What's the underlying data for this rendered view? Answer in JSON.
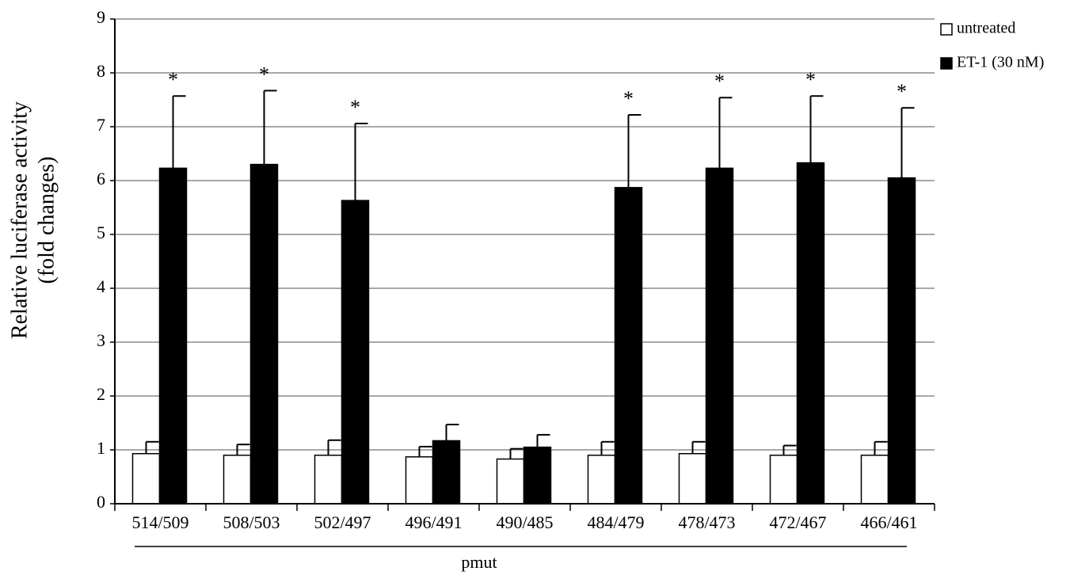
{
  "chart_data": {
    "type": "bar",
    "y_label": [
      "Relative luciferase activity",
      "(fold changes)"
    ],
    "x_label": "pmut",
    "categories": [
      "514/509",
      "508/503",
      "502/497",
      "496/491",
      "490/485",
      "484/479",
      "478/473",
      "472/467",
      "466/461"
    ],
    "series": [
      {
        "name": "untreated",
        "color": "#ffffff",
        "values": [
          0.93,
          0.9,
          0.9,
          0.87,
          0.83,
          0.9,
          0.93,
          0.9,
          0.9
        ],
        "errors": [
          0.22,
          0.2,
          0.28,
          0.19,
          0.19,
          0.25,
          0.22,
          0.18,
          0.25
        ]
      },
      {
        "name": "ET-1 (30 nM)",
        "color": "#000000",
        "values": [
          6.23,
          6.3,
          5.63,
          1.17,
          1.05,
          5.87,
          6.23,
          6.33,
          6.05
        ],
        "errors": [
          1.34,
          1.37,
          1.43,
          0.3,
          0.23,
          1.35,
          1.31,
          1.24,
          1.3
        ],
        "significance": [
          "*",
          "*",
          "*",
          null,
          null,
          "*",
          "*",
          "*",
          "*"
        ]
      }
    ],
    "ylim": [
      0,
      9
    ],
    "yticks": [
      0,
      1,
      2,
      3,
      4,
      5,
      6,
      7,
      8,
      9
    ],
    "grid": true,
    "legend": "top-right"
  }
}
